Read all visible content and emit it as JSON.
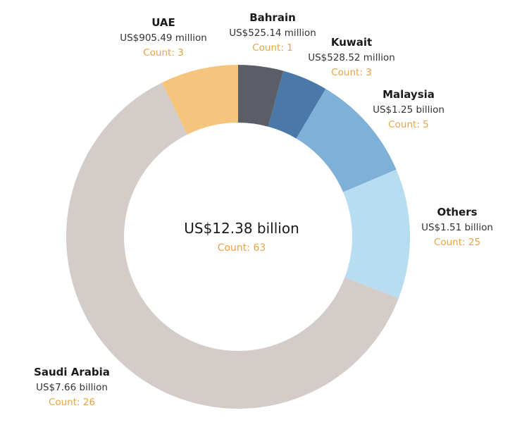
{
  "chart_data": {
    "type": "pie",
    "donut": true,
    "center": {
      "total_label": "US$12.38 billion",
      "count_label": "Count: 63"
    },
    "slices": [
      {
        "category": "Bahrain",
        "value": 0.52514,
        "value_label": "US$525.14 million",
        "count_label": "Count: 1",
        "color": "#5b5e66"
      },
      {
        "category": "Kuwait",
        "value": 0.52852,
        "value_label": "US$528.52 million",
        "count_label": "Count: 3",
        "color": "#4a78a8"
      },
      {
        "category": "Malaysia",
        "value": 1.25,
        "value_label": "US$1.25 billion",
        "count_label": "Count: 5",
        "color": "#7fb0d8"
      },
      {
        "category": "Others",
        "value": 1.51,
        "value_label": "US$1.51 billion",
        "count_label": "Count: 25",
        "color": "#b8dcf0"
      },
      {
        "category": "Saudi Arabia",
        "value": 7.66,
        "value_label": "US$7.66 billion",
        "count_label": "Count: 26",
        "color": "#d4ccc8"
      },
      {
        "category": "UAE",
        "value": 0.90549,
        "value_label": "US$905.49 million",
        "count_label": "Count: 3",
        "color": "#f5c57e"
      }
    ],
    "value_unit": "US$ billion",
    "legend": "none"
  },
  "colors": {
    "count_text": "#e8a444",
    "label_text": "#1a1a1a",
    "background": "#ffffff"
  }
}
